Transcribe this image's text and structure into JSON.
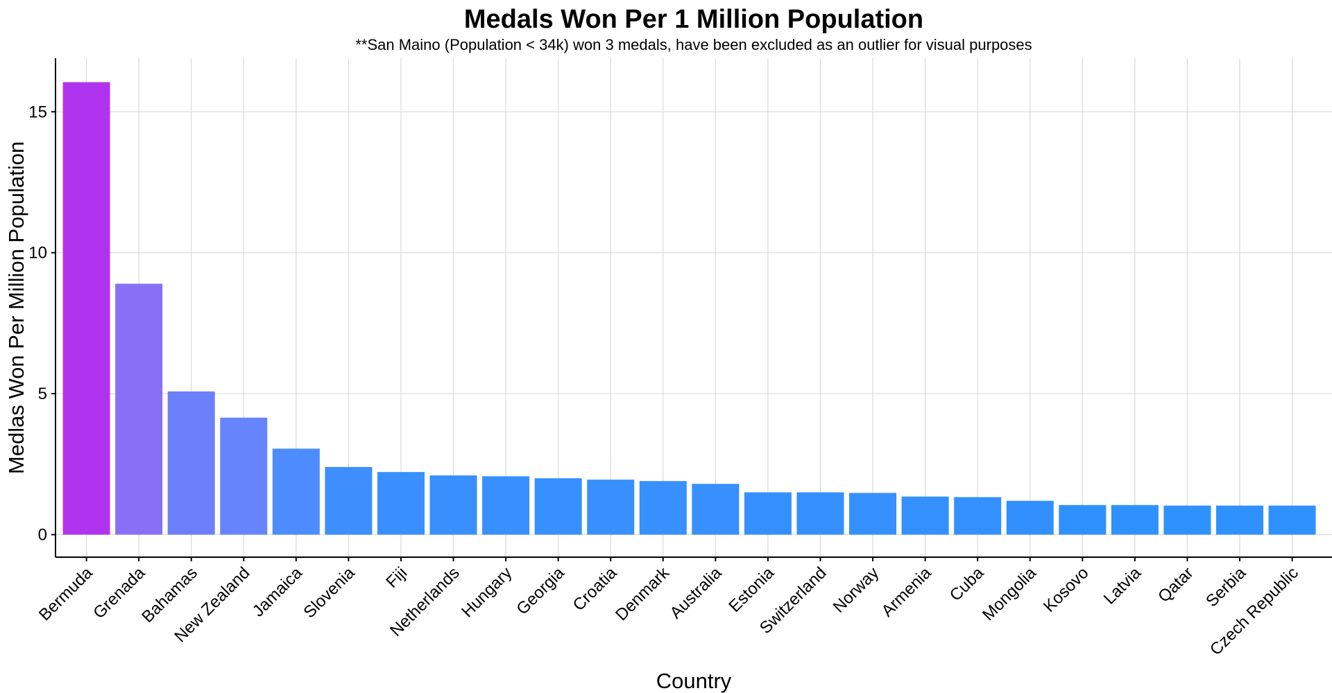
{
  "chart_data": {
    "type": "bar",
    "title": "Medals Won Per 1 Million Population",
    "subtitle": "**San Maino (Population < 34k) won 3 medals, have been excluded as an outlier for visual purposes",
    "xlabel": "Country",
    "ylabel": "Medlas Won Per Million Population",
    "ylim": [
      -0.8,
      16.9
    ],
    "yticks": [
      0,
      5,
      10,
      15
    ],
    "grid": true,
    "categories": [
      "Bermuda",
      "Grenada",
      "Bahamas",
      "New Zealand",
      "Jamaica",
      "Slovenia",
      "Fiji",
      "Netherlands",
      "Hungary",
      "Georgia",
      "Croatia",
      "Denmark",
      "Australia",
      "Estonia",
      "Switzerland",
      "Norway",
      "Armenia",
      "Cuba",
      "Mongolia",
      "Kosovo",
      "Latvia",
      "Qatar",
      "Serbia",
      "Czech Republic"
    ],
    "values": [
      16.05,
      8.9,
      5.08,
      4.15,
      3.05,
      2.4,
      2.22,
      2.1,
      2.07,
      2.0,
      1.95,
      1.9,
      1.8,
      1.5,
      1.5,
      1.48,
      1.35,
      1.33,
      1.2,
      1.05,
      1.05,
      1.03,
      1.03,
      1.03
    ],
    "colors": [
      "#b034ef",
      "#8870f6",
      "#6c7ffb",
      "#6685fc",
      "#4c8cfe",
      "#3f8efe",
      "#398ffe",
      "#398ffe",
      "#388ffe",
      "#388ffe",
      "#388ffe",
      "#388ffe",
      "#388ffe",
      "#3590fe",
      "#3590fe",
      "#3590fe",
      "#3390fe",
      "#3390fe",
      "#3290fe",
      "#2f91fe",
      "#2f91fe",
      "#2f91fe",
      "#2f91fe",
      "#2f91fe"
    ]
  }
}
